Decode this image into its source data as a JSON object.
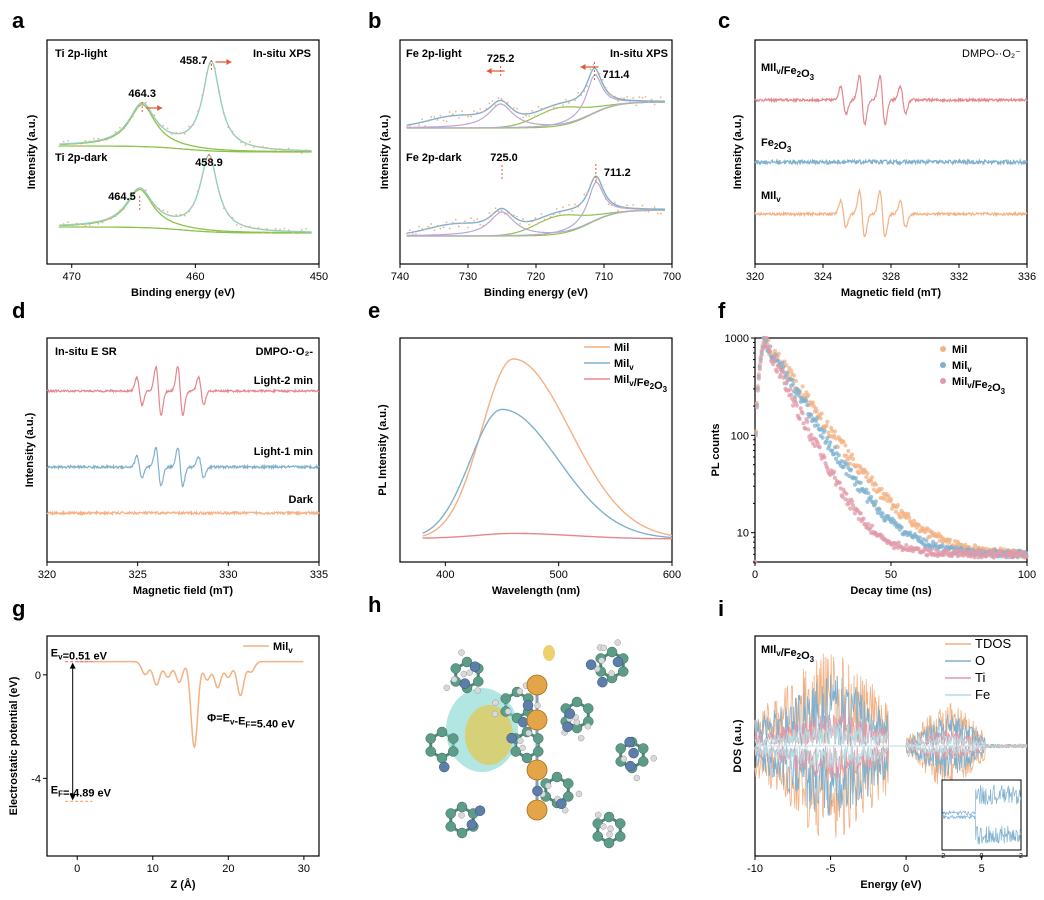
{
  "colors": {
    "orange": "#f4b183",
    "blue": "#7fb1cf",
    "red": "#e5878d",
    "green": "#8bc34a",
    "teal": "#8ed1c0",
    "lav": "#b9a8d6",
    "pink": "#e19aa8",
    "arrow": "#e05a3a"
  },
  "chart_data": [
    {
      "panel": "a",
      "type": "line",
      "title": "In-situ XPS",
      "xlabel": "Binding energy (eV)",
      "ylabel": "Intensity (a.u.)",
      "xlim": [
        472,
        450
      ],
      "xticks": [
        "470",
        "460",
        "450"
      ],
      "series": [
        {
          "name": "Ti 2p-light",
          "peaks_eV": [
            458.7,
            464.3
          ],
          "labels": [
            "458.7",
            "464.3"
          ]
        },
        {
          "name": "Ti 2p-dark",
          "peaks_eV": [
            458.9,
            464.5
          ],
          "labels": [
            "458.9",
            "464.5"
          ]
        }
      ]
    },
    {
      "panel": "b",
      "type": "line",
      "title": "In-situ XPS",
      "xlabel": "Binding energy (eV)",
      "ylabel": "Intensity (a.u.)",
      "xlim": [
        740,
        700
      ],
      "xticks": [
        "740",
        "730",
        "720",
        "710",
        "700"
      ],
      "series": [
        {
          "name": "Fe 2p-light",
          "peaks_eV": [
            725.2,
            711.4
          ],
          "labels": [
            "725.2",
            "711.4"
          ]
        },
        {
          "name": "Fe 2p-dark",
          "peaks_eV": [
            725.0,
            711.2
          ],
          "labels": [
            "725.0",
            "711.2"
          ]
        }
      ]
    },
    {
      "panel": "c",
      "type": "line",
      "title": "DMPO-·O₂⁻",
      "xlabel": "Magnetic field (mT)",
      "ylabel": "Intensity (a.u.)",
      "xlim": [
        320,
        336
      ],
      "xticks": [
        "320",
        "324",
        "328",
        "332",
        "336"
      ],
      "series": [
        {
          "name": "MIl",
          "sub": "v",
          "suffix": "/Fe",
          "sub2": "2",
          "suffix2": "O",
          "sub3": "3"
        },
        {
          "name": "Fe",
          "sub": "2",
          "suffix": "O",
          "sub2": "3"
        },
        {
          "name": "MIl",
          "sub": "v"
        }
      ]
    },
    {
      "panel": "d",
      "type": "line",
      "title": "DMPO-·O₂-",
      "corner_label": "In-situ E SR",
      "xlabel": "Magnetic field (mT)",
      "ylabel": "Intensity (a.u.)",
      "xlim": [
        320,
        335
      ],
      "xticks": [
        "320",
        "325",
        "330",
        "335"
      ],
      "series": [
        {
          "name": "Light-2 min"
        },
        {
          "name": "Light-1 min"
        },
        {
          "name": "Dark"
        }
      ]
    },
    {
      "panel": "e",
      "type": "line",
      "xlabel": "Wavelength (nm)",
      "ylabel": "PL Intensity (a.u.)",
      "xlim": [
        360,
        600
      ],
      "xticks": [
        "400",
        "500",
        "600"
      ],
      "series": [
        {
          "name": "Mil",
          "peak_nm": 460,
          "rel_height": 1.0
        },
        {
          "name": "Mil",
          "sub": "v",
          "peak_nm": 450,
          "rel_height": 0.72
        },
        {
          "name": "Mil",
          "sub": "v",
          "suffix": "/Fe",
          "sub2": "2",
          "suffix2": "O",
          "sub3": "3",
          "peak_nm": 460,
          "rel_height": 0.02
        }
      ]
    },
    {
      "panel": "f",
      "type": "scatter",
      "scale": "log",
      "xlabel": "Decay time (ns)",
      "ylabel": "PL counts",
      "xlim": [
        0,
        100
      ],
      "ylim": [
        5,
        1000
      ],
      "xticks": [
        "0",
        "50",
        "100"
      ],
      "yticks": [
        "10",
        "100",
        "1000"
      ],
      "series": [
        {
          "name": "Mil",
          "tau_ns": 11.0
        },
        {
          "name": "Mil",
          "sub": "v",
          "tau_ns": 9.5
        },
        {
          "name": "Mil",
          "sub": "v",
          "suffix": "/Fe",
          "sub2": "2",
          "suffix2": "O",
          "sub3": "3",
          "tau_ns": 7.5
        }
      ]
    },
    {
      "panel": "g",
      "type": "line",
      "xlabel": "Z (Å)",
      "ylabel": "Electrostatic potential (eV)",
      "xlim": [
        -4,
        32
      ],
      "ylim": [
        -7,
        1.5
      ],
      "xticks": [
        "0",
        "10",
        "20",
        "30"
      ],
      "yticks": [
        "0",
        "-4"
      ],
      "legend": {
        "name": "Mil",
        "sub": "v"
      },
      "annotations": {
        "ev_main": "E",
        "ev_sub": "v",
        "ev_val": "=0.51 eV",
        "ef_main": "E",
        "ef_sub": "F",
        "ef_val": "=-4.89 eV",
        "phi_pre": "Φ=E",
        "phi_sub1": "v",
        "phi_mid": "-E",
        "phi_sub2": "F",
        "phi_val": "=5.40 eV"
      },
      "levels": {
        "Ev": 0.51,
        "Ef": -4.89,
        "vacuum": 0.51
      }
    },
    {
      "panel": "i",
      "type": "line",
      "title": "MIl",
      "title_sub": "v",
      "title_suffix": "/Fe",
      "title_sub2": "2",
      "title_suffix2": "O",
      "title_sub3": "3",
      "xlabel": "Energy (eV)",
      "ylabel": "DOS (a.u.)",
      "xlim": [
        -10,
        8
      ],
      "xticks": [
        "-10",
        "-5",
        "0",
        "5"
      ],
      "series": [
        {
          "name": "TDOS"
        },
        {
          "name": "O"
        },
        {
          "name": "Ti"
        },
        {
          "name": "Fe"
        }
      ],
      "inset_xticks": [
        "-2",
        "0",
        "2"
      ]
    }
  ],
  "panel_h": {
    "label": "h"
  }
}
